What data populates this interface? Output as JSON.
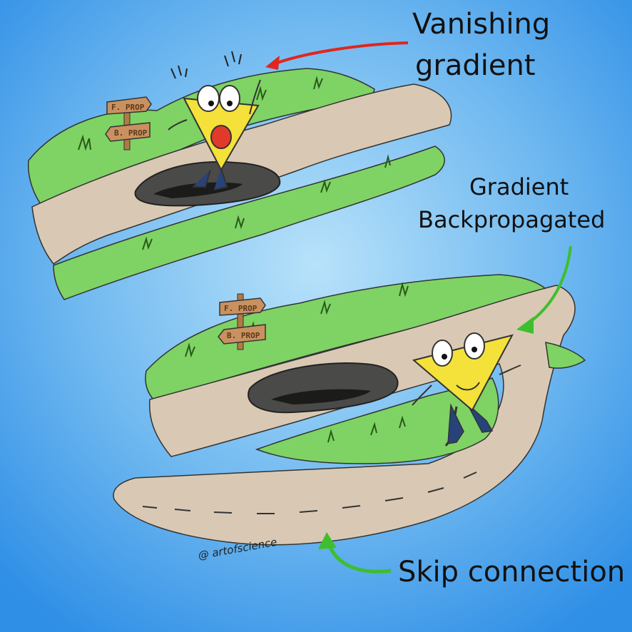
{
  "labels": {
    "vanishing_line1": "Vanishing",
    "vanishing_line2": "gradient",
    "gradient_line1": "Gradient",
    "gradient_line2": "Backpropagated",
    "skip": "Skip connection",
    "credit": "@ artofscience"
  },
  "signs": {
    "top_forward": "F. PROP",
    "top_backward": "B. PROP",
    "bottom_forward": "F. PROP",
    "bottom_backward": "B. PROP"
  },
  "colors": {
    "sky_center": "#9fd4f6",
    "sky_edge": "#2f8fe6",
    "road": "#d9c9b4",
    "grass": "#7ed364",
    "hole": "#4a4a48",
    "character": "#f4e13a",
    "arrow_red": "#e0261e",
    "arrow_green": "#3fbe2e"
  }
}
